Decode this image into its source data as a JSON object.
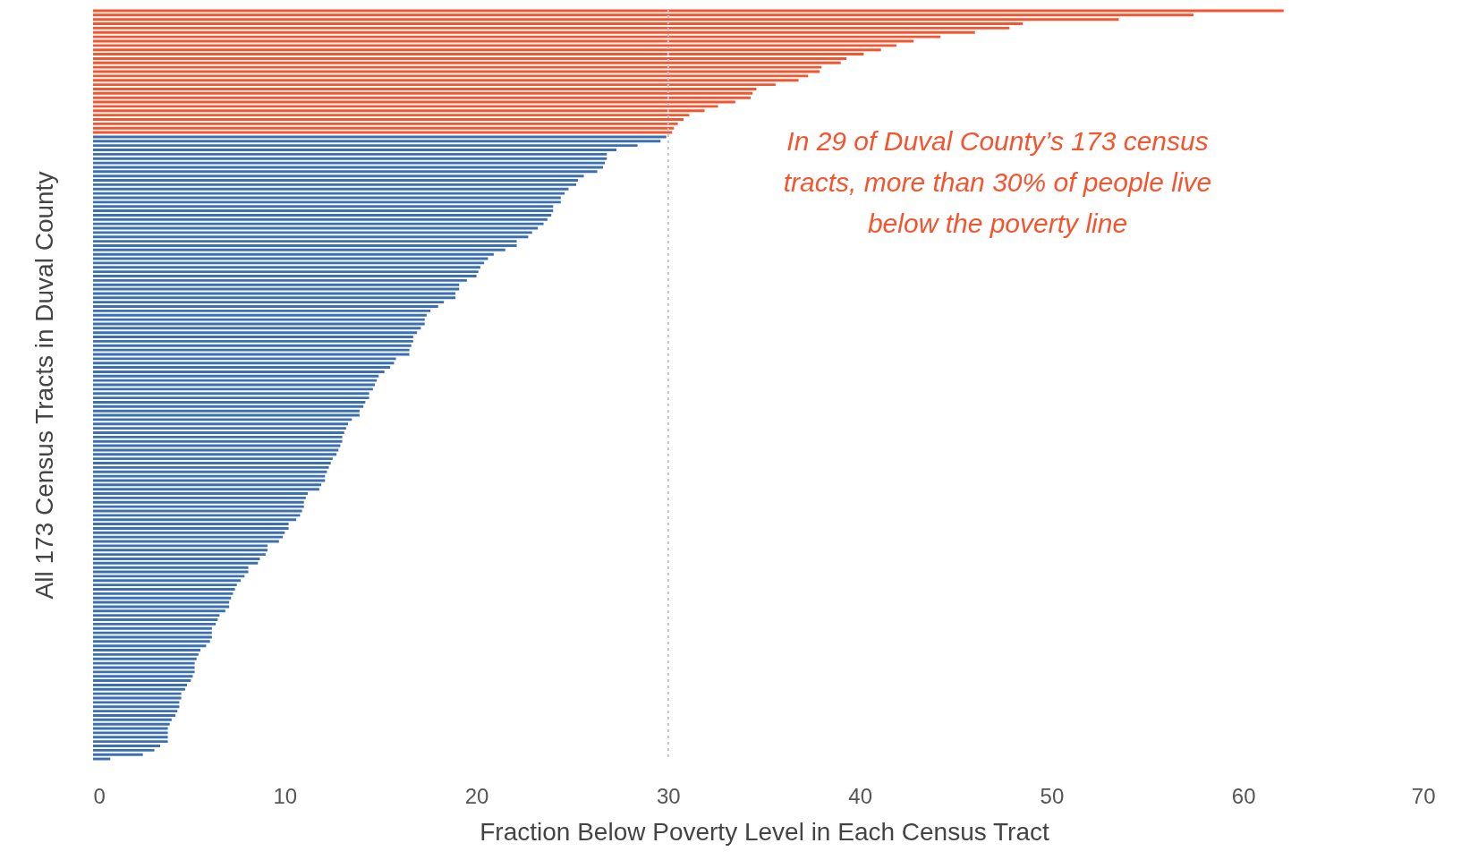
{
  "chart_data": {
    "type": "bar",
    "orientation": "horizontal",
    "xlabel": "Fraction Below Poverty Level in Each Census Tract",
    "ylabel": "All 173 Census Tracts in Duval County",
    "annotations": [
      "In 29 of Duval County’s 173 census tracts, more than 30% of people live below the poverty line"
    ],
    "categories": [
      null,
      null,
      null,
      null,
      null,
      null,
      null,
      null,
      null,
      null,
      null,
      null,
      null,
      null,
      null,
      null,
      null,
      null,
      null,
      null,
      null,
      null,
      null,
      null,
      null,
      null,
      null,
      null,
      null,
      null,
      null,
      null,
      null,
      null,
      null,
      null,
      null,
      null,
      null,
      null,
      null,
      null,
      null,
      null,
      null,
      null,
      null,
      null,
      null,
      null,
      null,
      null,
      null,
      null,
      null,
      null,
      null,
      null,
      null,
      null,
      null,
      null,
      null,
      null,
      null,
      null,
      null,
      null,
      null,
      null,
      null,
      null,
      null,
      null,
      null,
      null,
      null,
      null,
      null,
      null,
      null,
      null,
      null,
      null,
      null,
      null,
      null,
      null,
      null,
      null,
      null,
      null,
      null,
      null,
      null,
      null,
      null,
      null,
      null,
      null,
      null,
      null,
      null,
      null,
      null,
      null,
      null,
      null,
      null,
      null,
      null,
      null,
      null,
      null,
      null,
      null,
      null,
      null,
      null,
      null,
      null,
      null,
      null,
      null,
      null,
      null,
      null,
      null,
      null,
      null,
      null,
      null,
      null,
      null,
      null,
      null,
      null,
      null,
      null,
      null,
      null,
      null,
      null,
      null,
      null,
      null,
      null,
      null,
      null,
      null,
      null,
      null,
      null,
      null,
      null,
      null,
      null,
      null,
      null,
      null,
      null,
      null,
      null,
      null,
      null,
      null,
      null,
      null,
      null,
      null,
      null,
      null,
      null
    ],
    "values": [
      62.1,
      57.4,
      53.5,
      48.5,
      47.8,
      46,
      44.2,
      42.8,
      41.9,
      41.1,
      40.2,
      39.3,
      39,
      38,
      37.9,
      37.3,
      36.8,
      35.6,
      34.6,
      34.4,
      34.3,
      33.5,
      32.6,
      31.9,
      31.1,
      30.8,
      30.5,
      30.3,
      30.2,
      29.9,
      29.6,
      28.4,
      27.3,
      26.8,
      26.8,
      26.7,
      26.6,
      26.3,
      25.6,
      25.3,
      25.2,
      24.8,
      24.6,
      24.4,
      24.4,
      24.0,
      24.0,
      23.9,
      23.7,
      23.5,
      23.2,
      22.9,
      22.7,
      22.1,
      22.1,
      21.5,
      20.9,
      20.6,
      20.4,
      20.2,
      20.1,
      20.0,
      19.5,
      19.1,
      19.1,
      18.9,
      18.9,
      18.3,
      18.0,
      17.6,
      17.4,
      17.3,
      17.3,
      17.1,
      16.9,
      16.7,
      16.7,
      16.6,
      16.5,
      16.5,
      15.8,
      15.7,
      15.5,
      15.2,
      14.9,
      14.8,
      14.7,
      14.6,
      14.4,
      14.4,
      14.2,
      14.1,
      13.9,
      13.9,
      13.5,
      13.3,
      13.2,
      13.1,
      13.0,
      13.0,
      12.9,
      12.8,
      12.7,
      12.5,
      12.4,
      12.3,
      12.2,
      12.1,
      12.1,
      11.9,
      11.8,
      11.2,
      11.1,
      11.0,
      11.0,
      10.9,
      10.8,
      10.6,
      10.2,
      10.2,
      10.0,
      9.9,
      9.7,
      9.1,
      9.1,
      9.0,
      8.7,
      8.6,
      8.1,
      8.1,
      7.9,
      7.7,
      7.5,
      7.4,
      7.3,
      7.2,
      7.1,
      7.1,
      6.9,
      6.6,
      6.5,
      6.4,
      6.2,
      6.2,
      6.2,
      6.1,
      5.9,
      5.6,
      5.5,
      5.4,
      5.3,
      5.3,
      5.3,
      5.2,
      5.1,
      4.9,
      4.8,
      4.6,
      4.6,
      4.5,
      4.5,
      4.4,
      4.3,
      4.1,
      4.0,
      3.9,
      3.9,
      3.9,
      3.9,
      3.5,
      3.2,
      2.6,
      0.9
    ],
    "colors": [
      "#f4552f",
      "#f4552f",
      "#f4552f",
      "#f4552f",
      "#f4552f",
      "#f4552f",
      "#f4552f",
      "#f4552f",
      "#f4552f",
      "#f4552f",
      "#f4552f",
      "#f4552f",
      "#f4552f",
      "#f4552f",
      "#f4552f",
      "#f4552f",
      "#f4552f",
      "#f4552f",
      "#f4552f",
      "#f4552f",
      "#f4552f",
      "#f4552f",
      "#f4552f",
      "#f4552f",
      "#f4552f",
      "#f4552f",
      "#f4552f",
      "#f4552f",
      "#f4552f",
      "#3b6fb3",
      "#3b6fb3",
      "#3b6fb3",
      "#3b6fb3",
      "#3b6fb3",
      "#3b6fb3",
      "#3b6fb3",
      "#3b6fb3",
      "#3b6fb3",
      "#3b6fb3",
      "#3b6fb3",
      "#3b6fb3",
      "#3b6fb3",
      "#3b6fb3",
      "#3b6fb3",
      "#3b6fb3",
      "#3b6fb3",
      "#3b6fb3",
      "#3b6fb3",
      "#3b6fb3",
      "#3b6fb3",
      "#3b6fb3",
      "#3b6fb3",
      "#3b6fb3",
      "#3b6fb3",
      "#3b6fb3",
      "#3b6fb3",
      "#3b6fb3",
      "#3b6fb3",
      "#3b6fb3",
      "#3b6fb3",
      "#3b6fb3",
      "#3b6fb3",
      "#3b6fb3",
      "#3b6fb3",
      "#3b6fb3",
      "#3b6fb3",
      "#3b6fb3",
      "#3b6fb3",
      "#3b6fb3",
      "#3b6fb3",
      "#3b6fb3",
      "#3b6fb3",
      "#3b6fb3",
      "#3b6fb3",
      "#3b6fb3",
      "#3b6fb3",
      "#3b6fb3",
      "#3b6fb3",
      "#3b6fb3",
      "#3b6fb3",
      "#3b6fb3",
      "#3b6fb3",
      "#3b6fb3",
      "#3b6fb3",
      "#3b6fb3",
      "#3b6fb3",
      "#3b6fb3",
      "#3b6fb3",
      "#3b6fb3",
      "#3b6fb3",
      "#3b6fb3",
      "#3b6fb3",
      "#3b6fb3",
      "#3b6fb3",
      "#3b6fb3",
      "#3b6fb3",
      "#3b6fb3",
      "#3b6fb3",
      "#3b6fb3",
      "#3b6fb3",
      "#3b6fb3",
      "#3b6fb3",
      "#3b6fb3",
      "#3b6fb3",
      "#3b6fb3",
      "#3b6fb3",
      "#3b6fb3",
      "#3b6fb3",
      "#3b6fb3",
      "#3b6fb3",
      "#3b6fb3",
      "#3b6fb3",
      "#3b6fb3",
      "#3b6fb3",
      "#3b6fb3",
      "#3b6fb3",
      "#3b6fb3",
      "#3b6fb3",
      "#3b6fb3",
      "#3b6fb3",
      "#3b6fb3",
      "#3b6fb3",
      "#3b6fb3",
      "#3b6fb3",
      "#3b6fb3",
      "#3b6fb3",
      "#3b6fb3",
      "#3b6fb3",
      "#3b6fb3",
      "#3b6fb3",
      "#3b6fb3",
      "#3b6fb3",
      "#3b6fb3",
      "#3b6fb3",
      "#3b6fb3",
      "#3b6fb3",
      "#3b6fb3",
      "#3b6fb3",
      "#3b6fb3",
      "#3b6fb3",
      "#3b6fb3",
      "#3b6fb3",
      "#3b6fb3",
      "#3b6fb3",
      "#3b6fb3",
      "#3b6fb3",
      "#3b6fb3",
      "#3b6fb3",
      "#3b6fb3",
      "#3b6fb3",
      "#3b6fb3",
      "#3b6fb3",
      "#3b6fb3",
      "#3b6fb3",
      "#3b6fb3",
      "#3b6fb3",
      "#3b6fb3",
      "#3b6fb3",
      "#3b6fb3",
      "#3b6fb3",
      "#3b6fb3",
      "#3b6fb3",
      "#3b6fb3",
      "#3b6fb3",
      "#3b6fb3",
      "#3b6fb3",
      "#3b6fb3",
      "#3b6fb3",
      "#3b6fb3",
      "#3b6fb3",
      "#3b6fb3",
      "#3b6fb3",
      "#3b6fb3"
    ],
    "xlim": [
      0,
      70
    ],
    "xticks": [
      0,
      10,
      20,
      30,
      40,
      50,
      60,
      70
    ],
    "tick_labels": "x",
    "ref_lines": [
      {
        "axis": "x",
        "value": 30,
        "color": "#c4c4c4",
        "line_style": "dotted"
      }
    ]
  }
}
